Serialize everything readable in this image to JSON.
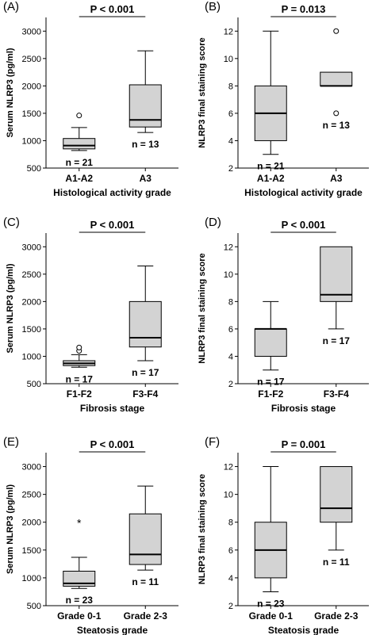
{
  "chart_data": [
    {
      "type": "box",
      "panel": "(A)",
      "ylabel": "Serum NLRP3 (pg/ml)",
      "xlabel": "Histological activity grade",
      "ylim": [
        500,
        3250
      ],
      "yticks": [
        500,
        1000,
        1500,
        2000,
        2500,
        3000
      ],
      "pvalue": "P < 0.001",
      "categories": [
        "A1-A2",
        "A3"
      ],
      "boxes": [
        {
          "min": 820,
          "q1": 850,
          "median": 910,
          "q3": 1040,
          "max": 1240,
          "outliers": [
            {
              "y": 1460,
              "marker": "circle"
            }
          ],
          "n": "n = 21"
        },
        {
          "min": 1150,
          "q1": 1250,
          "median": 1380,
          "q3": 2020,
          "max": 2640,
          "outliers": [],
          "n": "n = 13"
        }
      ]
    },
    {
      "type": "box",
      "panel": "(B)",
      "ylabel": "NLRP3 final staining score",
      "xlabel": "Histological activity grade",
      "ylim": [
        2,
        13
      ],
      "yticks": [
        2,
        4,
        6,
        8,
        10,
        12
      ],
      "pvalue": "P = 0.013",
      "categories": [
        "A1-A2",
        "A3"
      ],
      "boxes": [
        {
          "min": 3,
          "q1": 4,
          "median": 6,
          "q3": 8,
          "max": 12,
          "outliers": [],
          "n": "n = 21"
        },
        {
          "min": 8,
          "q1": 8,
          "median": 8,
          "q3": 9,
          "max": 9,
          "outliers": [
            {
              "y": 12,
              "marker": "circle"
            },
            {
              "y": 6,
              "marker": "circle"
            }
          ],
          "n": "n = 13"
        }
      ]
    },
    {
      "type": "box",
      "panel": "(C)",
      "ylabel": "Serum NLRP3 (pg/ml)",
      "xlabel": "Fibrosis stage",
      "ylim": [
        500,
        3250
      ],
      "yticks": [
        500,
        1000,
        1500,
        2000,
        2500,
        3000
      ],
      "pvalue": "P < 0.001",
      "categories": [
        "F1-F2",
        "F3-F4"
      ],
      "boxes": [
        {
          "min": 800,
          "q1": 830,
          "median": 870,
          "q3": 920,
          "max": 1030,
          "outliers": [
            {
              "y": 1100,
              "marker": "circle"
            },
            {
              "y": 1160,
              "marker": "circle"
            }
          ],
          "n": "n = 17"
        },
        {
          "min": 920,
          "q1": 1170,
          "median": 1340,
          "q3": 2000,
          "max": 2650,
          "outliers": [],
          "n": "n = 17"
        }
      ]
    },
    {
      "type": "box",
      "panel": "(D)",
      "ylabel": "NLRP3 final staining score",
      "xlabel": "Fibrosis stage",
      "ylim": [
        2,
        13
      ],
      "yticks": [
        2,
        4,
        6,
        8,
        10,
        12
      ],
      "pvalue": "P < 0.001",
      "categories": [
        "F1-F2",
        "F3-F4"
      ],
      "boxes": [
        {
          "min": 3,
          "q1": 4,
          "median": 6,
          "q3": 6,
          "max": 8,
          "outliers": [],
          "n": "n = 17"
        },
        {
          "min": 6,
          "q1": 8,
          "median": 8.5,
          "q3": 12,
          "max": 12,
          "outliers": [],
          "n": "n = 17"
        }
      ]
    },
    {
      "type": "box",
      "panel": "(E)",
      "ylabel": "Serum NLRP3 (pg/ml)",
      "xlabel": "Steatosis grade",
      "ylim": [
        500,
        3250
      ],
      "yticks": [
        500,
        1000,
        1500,
        2000,
        2500,
        3000
      ],
      "pvalue": "P < 0.001",
      "categories": [
        "Grade 0-1",
        "Grade 2-3"
      ],
      "boxes": [
        {
          "min": 810,
          "q1": 850,
          "median": 900,
          "q3": 1120,
          "max": 1370,
          "outliers": [
            {
              "y": 2000,
              "marker": "star"
            }
          ],
          "n": "n = 23"
        },
        {
          "min": 1140,
          "q1": 1240,
          "median": 1420,
          "q3": 2150,
          "max": 2650,
          "outliers": [],
          "n": "n = 11"
        }
      ]
    },
    {
      "type": "box",
      "panel": "(F)",
      "ylabel": "NLRP3 final staining score",
      "xlabel": "Steatosis grade",
      "ylim": [
        2,
        13
      ],
      "yticks": [
        2,
        4,
        6,
        8,
        10,
        12
      ],
      "pvalue": "P = 0.001",
      "categories": [
        "Grade 0-1",
        "Grade 2-3"
      ],
      "boxes": [
        {
          "min": 3,
          "q1": 4,
          "median": 6,
          "q3": 8,
          "max": 12,
          "outliers": [],
          "n": "n = 23"
        },
        {
          "min": 6,
          "q1": 8,
          "median": 9,
          "q3": 12,
          "max": 12,
          "outliers": [],
          "n": "n = 11"
        }
      ]
    }
  ]
}
